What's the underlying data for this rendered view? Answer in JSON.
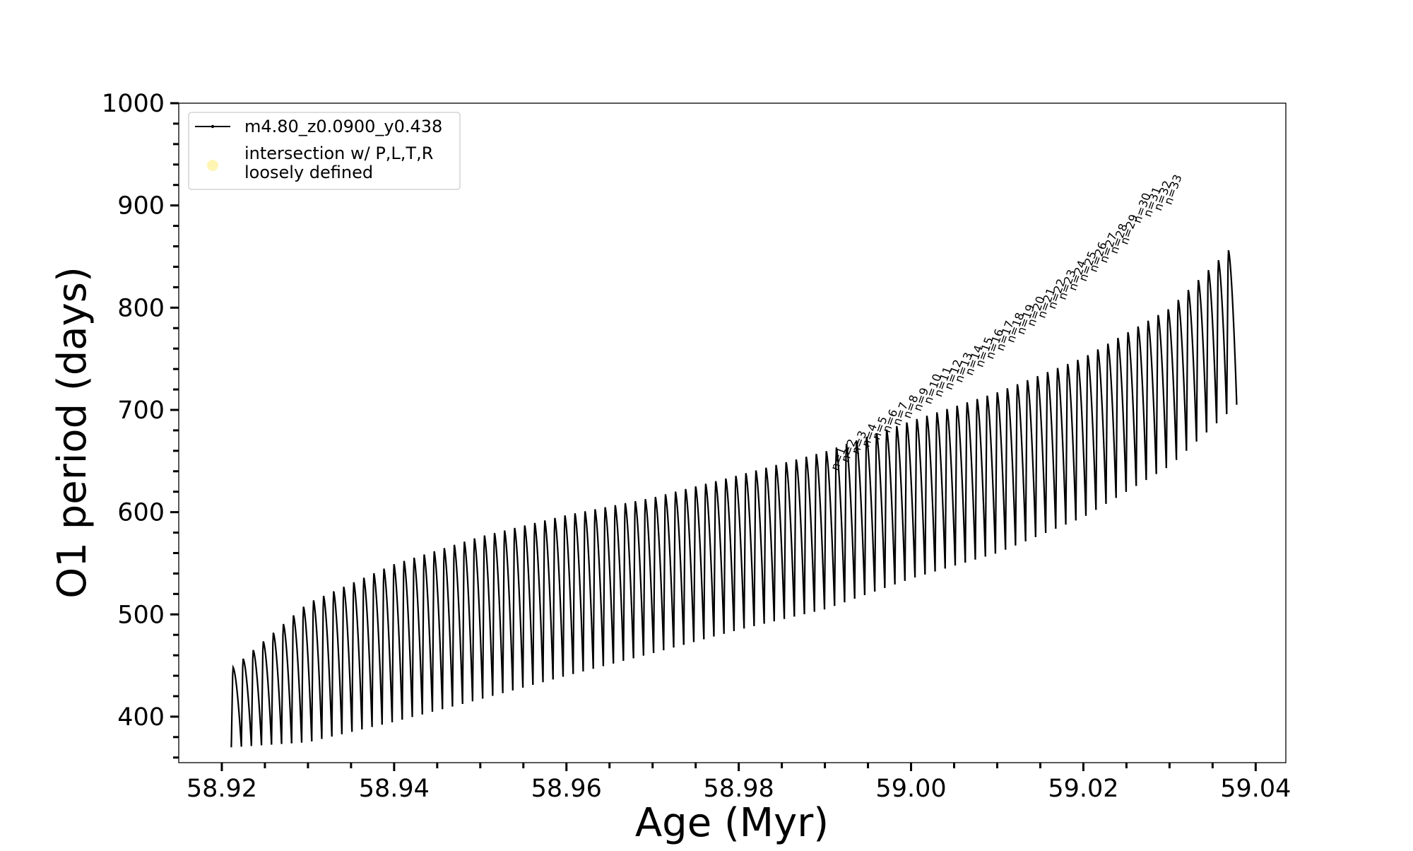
{
  "chart_data": {
    "type": "line",
    "xlabel": "Age (Myr)",
    "ylabel": "O1 period (days)",
    "xlim": [
      58.915,
      59.0435
    ],
    "ylim": [
      355,
      1000
    ],
    "x_ticks": [
      58.92,
      58.94,
      58.96,
      58.98,
      59.0,
      59.02,
      59.04
    ],
    "x_tick_labels": [
      "58.92",
      "58.94",
      "58.96",
      "58.98",
      "59.00",
      "59.02",
      "59.04"
    ],
    "y_ticks": [
      400,
      500,
      600,
      700,
      800,
      900,
      1000
    ],
    "y_tick_labels": [
      "400",
      "500",
      "600",
      "700",
      "800",
      "900",
      "1000"
    ],
    "grid": false,
    "legend_position": "top-left",
    "series": [
      {
        "name": "m4.80_z0.0900_y0.438",
        "color": "#000000",
        "marker": "dot",
        "description_points": {
          "age_start": 58.9211,
          "age_end": 59.0378,
          "n_pulses": 100,
          "upper_envelope": [
            {
              "x": 58.9211,
              "y": 447
            },
            {
              "x": 58.93,
              "y": 512
            },
            {
              "x": 58.94,
              "y": 550
            },
            {
              "x": 58.95,
              "y": 577
            },
            {
              "x": 58.96,
              "y": 598
            },
            {
              "x": 58.97,
              "y": 615
            },
            {
              "x": 58.98,
              "y": 637
            },
            {
              "x": 58.99,
              "y": 660
            },
            {
              "x": 59.0,
              "y": 690
            },
            {
              "x": 59.01,
              "y": 718
            },
            {
              "x": 59.02,
              "y": 752
            },
            {
              "x": 59.03,
              "y": 800
            },
            {
              "x": 59.0378,
              "y": 865
            }
          ],
          "lower_envelope": [
            {
              "x": 58.9211,
              "y": 370
            },
            {
              "x": 58.93,
              "y": 375
            },
            {
              "x": 58.94,
              "y": 395
            },
            {
              "x": 58.95,
              "y": 417
            },
            {
              "x": 58.96,
              "y": 440
            },
            {
              "x": 58.97,
              "y": 462
            },
            {
              "x": 58.98,
              "y": 485
            },
            {
              "x": 58.99,
              "y": 505
            },
            {
              "x": 59.0,
              "y": 535
            },
            {
              "x": 59.01,
              "y": 560
            },
            {
              "x": 59.02,
              "y": 595
            },
            {
              "x": 59.03,
              "y": 645
            },
            {
              "x": 59.0378,
              "y": 705
            }
          ]
        }
      },
      {
        "name": "intersection w/ P,L,T,R\nloosely defined",
        "name_lines": [
          "intersection w/ P,L,T,R",
          "loosely defined"
        ],
        "color": "#fff5b3",
        "marker": "circle",
        "points": []
      }
    ],
    "annotations": [
      {
        "text": "n=1",
        "x": 58.9915,
        "y": 640
      },
      {
        "text": "n=2",
        "x": 58.9927,
        "y": 648
      },
      {
        "text": "n=3",
        "x": 58.9939,
        "y": 656
      },
      {
        "text": "n=4",
        "x": 58.9951,
        "y": 663
      },
      {
        "text": "n=5",
        "x": 58.9963,
        "y": 670
      },
      {
        "text": "n=6",
        "x": 58.9975,
        "y": 677
      },
      {
        "text": "n=7",
        "x": 58.9987,
        "y": 684
      },
      {
        "text": "n=8",
        "x": 58.9999,
        "y": 691
      },
      {
        "text": "n=9",
        "x": 59.0011,
        "y": 698
      },
      {
        "text": "n=10",
        "x": 59.0023,
        "y": 705
      },
      {
        "text": "n=11",
        "x": 59.0035,
        "y": 712
      },
      {
        "text": "n=12",
        "x": 59.0047,
        "y": 719
      },
      {
        "text": "n=13",
        "x": 59.0059,
        "y": 726
      },
      {
        "text": "n=14",
        "x": 59.0071,
        "y": 733
      },
      {
        "text": "n=15",
        "x": 59.0083,
        "y": 741
      },
      {
        "text": "n=16",
        "x": 59.0095,
        "y": 749
      },
      {
        "text": "n=17",
        "x": 59.0107,
        "y": 757
      },
      {
        "text": "n=18",
        "x": 59.0119,
        "y": 765
      },
      {
        "text": "n=19",
        "x": 59.0131,
        "y": 773
      },
      {
        "text": "n=20",
        "x": 59.0143,
        "y": 781
      },
      {
        "text": "n=21",
        "x": 59.0155,
        "y": 789
      },
      {
        "text": "n=22",
        "x": 59.0167,
        "y": 798
      },
      {
        "text": "n=23",
        "x": 59.0179,
        "y": 807
      },
      {
        "text": "n=24",
        "x": 59.0191,
        "y": 816
      },
      {
        "text": "n=25",
        "x": 59.0203,
        "y": 825
      },
      {
        "text": "n=26",
        "x": 59.0215,
        "y": 834
      },
      {
        "text": "n=27",
        "x": 59.0227,
        "y": 843
      },
      {
        "text": "n=28",
        "x": 59.0239,
        "y": 852
      },
      {
        "text": "n=29",
        "x": 59.0251,
        "y": 861
      },
      {
        "text": "n=30",
        "x": 59.0266,
        "y": 882
      },
      {
        "text": "n=31",
        "x": 59.0278,
        "y": 888
      },
      {
        "text": "n=32",
        "x": 59.029,
        "y": 894
      },
      {
        "text": "n=33",
        "x": 59.0302,
        "y": 900
      }
    ]
  }
}
